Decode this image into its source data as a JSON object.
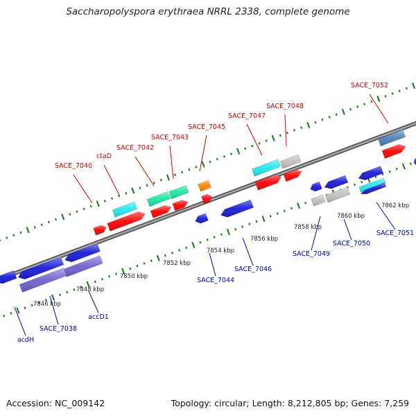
{
  "title": "Saccharopolyspora erythraea NRRL 2338, complete genome",
  "footer": {
    "accession": "Accession: NC_009142",
    "summary": "Topology: circular; Length: 8,212,805 bp; Genes: 7,259"
  },
  "colors": {
    "backbone": "#777777",
    "tick": "#2a7a2a",
    "forward_label": "#cc0000",
    "reverse_label": "#0000aa",
    "red": "#ff0000",
    "blue": "#1a1ad8",
    "cyan": "#22e8ee",
    "teal": "#18e8a0",
    "orange": "#ff8800",
    "gray": "#c0c0c0",
    "slate": "#4a80b8",
    "purple": "#7060d0"
  },
  "scale": {
    "tick_labels": [
      "7846 kbp",
      "7848 kbp",
      "7850 kbp",
      "7852 kbp",
      "7854 kbp",
      "7856 kbp",
      "7858 kbp",
      "7860 kbp",
      "7862 kbp"
    ]
  },
  "gene_labels": {
    "forward": [
      "SACE_7040",
      "ctaD",
      "SACE_7042",
      "SACE_7043",
      "SACE_7045",
      "SACE_7047",
      "SACE_7048",
      "SACE_7052"
    ],
    "reverse": [
      "acdH",
      "SACE_7038",
      "accD1",
      "SACE_7044",
      "SACE_7046",
      "SACE_7049",
      "SACE_7050",
      "SACE_7051"
    ]
  }
}
